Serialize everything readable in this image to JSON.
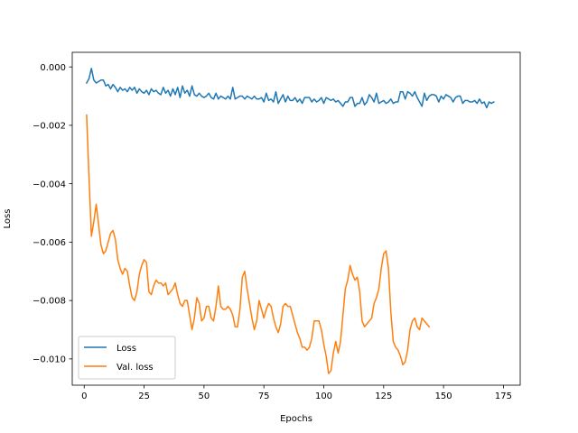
{
  "chart_data": {
    "type": "line",
    "title": "",
    "xlabel": "Epochs",
    "ylabel": "Loss",
    "xlim": [
      -5,
      182
    ],
    "ylim": [
      -0.0109,
      0.0005
    ],
    "xticks": [
      0,
      25,
      50,
      75,
      100,
      125,
      150,
      175
    ],
    "xtick_labels": [
      "0",
      "25",
      "50",
      "75",
      "100",
      "125",
      "150",
      "175"
    ],
    "yticks": [
      0.0,
      -0.002,
      -0.004,
      -0.006,
      -0.008,
      -0.01
    ],
    "ytick_labels": [
      "0.000",
      "−0.002",
      "−0.004",
      "−0.006",
      "−0.008",
      "−0.010"
    ],
    "grid": false,
    "legend_position": "lower-left",
    "series": [
      {
        "name": "Loss",
        "color": "#1f77b4",
        "x_start": 1,
        "x_step": 1,
        "values": [
          -0.00055,
          -0.0004,
          -5e-05,
          -0.00045,
          -0.00055,
          -0.0005,
          -0.00045,
          -0.00045,
          -0.00065,
          -0.0006,
          -0.00075,
          -0.0006,
          -0.0007,
          -0.00085,
          -0.0007,
          -0.0008,
          -0.00075,
          -0.00085,
          -0.0007,
          -0.0008,
          -0.0007,
          -0.0009,
          -0.00075,
          -0.00085,
          -0.0009,
          -0.0008,
          -0.00095,
          -0.00075,
          -0.00085,
          -0.0008,
          -0.0009,
          -0.00095,
          -0.0007,
          -0.0009,
          -0.0008,
          -0.001,
          -0.00075,
          -0.00095,
          -0.0007,
          -0.00105,
          -0.00065,
          -0.0009,
          -0.0008,
          -0.001,
          -0.00065,
          -0.00095,
          -0.001,
          -0.0009,
          -0.001,
          -0.00105,
          -0.001,
          -0.0009,
          -0.00105,
          -0.0011,
          -0.0009,
          -0.0011,
          -0.001,
          -0.00105,
          -0.0011,
          -0.001,
          -0.0011,
          -0.0007,
          -0.0011,
          -0.00105,
          -0.001,
          -0.001,
          -0.0011,
          -0.001,
          -0.00105,
          -0.0011,
          -0.001,
          -0.0011,
          -0.0011,
          -0.00105,
          -0.0012,
          -0.0009,
          -0.00115,
          -0.0011,
          -0.0012,
          -0.00085,
          -0.00125,
          -0.0011,
          -0.00095,
          -0.0012,
          -0.001,
          -0.00115,
          -0.00115,
          -0.00105,
          -0.0012,
          -0.0011,
          -0.00125,
          -0.00105,
          -0.00105,
          -0.00105,
          -0.0012,
          -0.0011,
          -0.0012,
          -0.00115,
          -0.00105,
          -0.00125,
          -0.00105,
          -0.0011,
          -0.00115,
          -0.0011,
          -0.0012,
          -0.00115,
          -0.00125,
          -0.00135,
          -0.0012,
          -0.0012,
          -0.00105,
          -0.00105,
          -0.00135,
          -0.00125,
          -0.00125,
          -0.00105,
          -0.0013,
          -0.0012,
          -0.00095,
          -0.00105,
          -0.0012,
          -0.0009,
          -0.00125,
          -0.0012,
          -0.00115,
          -0.00125,
          -0.0012,
          -0.0011,
          -0.00125,
          -0.0012,
          -0.0012,
          -0.00085,
          -0.00085,
          -0.0011,
          -0.00085,
          -0.0009,
          -0.001,
          -0.00085,
          -0.00105,
          -0.0012,
          -0.00135,
          -0.0009,
          -0.00115,
          -0.001,
          -0.00095,
          -0.00095,
          -0.001,
          -0.0012,
          -0.001,
          -0.0011,
          -0.00095,
          -0.001,
          -0.00105,
          -0.0012,
          -0.00105,
          -0.001,
          -0.001,
          -0.00125,
          -0.00115,
          -0.00115,
          -0.0012,
          -0.0012,
          -0.00115,
          -0.00125,
          -0.0011,
          -0.00125,
          -0.0012,
          -0.0014,
          -0.0012,
          -0.00125,
          -0.0012
        ]
      },
      {
        "name": "Val. loss",
        "color": "#ff7f0e",
        "x_start": 1,
        "x_step": 1,
        "values": [
          -0.00165,
          -0.0038,
          -0.0058,
          -0.0053,
          -0.0047,
          -0.0054,
          -0.0061,
          -0.0064,
          -0.0063,
          -0.006,
          -0.0057,
          -0.0056,
          -0.0059,
          -0.0066,
          -0.0069,
          -0.0071,
          -0.0069,
          -0.007,
          -0.0075,
          -0.0079,
          -0.008,
          -0.0077,
          -0.0071,
          -0.0068,
          -0.0066,
          -0.0067,
          -0.0077,
          -0.0078,
          -0.0075,
          -0.0073,
          -0.0074,
          -0.0074,
          -0.0075,
          -0.0074,
          -0.0078,
          -0.0077,
          -0.0076,
          -0.0074,
          -0.0078,
          -0.0081,
          -0.0082,
          -0.008,
          -0.008,
          -0.0085,
          -0.009,
          -0.0086,
          -0.0079,
          -0.0081,
          -0.0087,
          -0.0086,
          -0.0082,
          -0.0082,
          -0.0086,
          -0.0087,
          -0.0082,
          -0.0075,
          -0.0082,
          -0.0083,
          -0.0083,
          -0.0082,
          -0.0083,
          -0.0085,
          -0.0089,
          -0.0089,
          -0.0083,
          -0.0072,
          -0.007,
          -0.0076,
          -0.0081,
          -0.0086,
          -0.009,
          -0.0087,
          -0.008,
          -0.0083,
          -0.0086,
          -0.0083,
          -0.0081,
          -0.0082,
          -0.0086,
          -0.0089,
          -0.0091,
          -0.0088,
          -0.0082,
          -0.0081,
          -0.0082,
          -0.0082,
          -0.0085,
          -0.0088,
          -0.0091,
          -0.0093,
          -0.0096,
          -0.0096,
          -0.0097,
          -0.0096,
          -0.0093,
          -0.0087,
          -0.0087,
          -0.0087,
          -0.009,
          -0.0095,
          -0.0099,
          -0.0105,
          -0.0104,
          -0.0098,
          -0.0094,
          -0.0098,
          -0.0094,
          -0.0085,
          -0.0076,
          -0.0073,
          -0.0068,
          -0.0071,
          -0.0073,
          -0.0072,
          -0.0077,
          -0.0087,
          -0.0089,
          -0.0088,
          -0.0087,
          -0.0086,
          -0.0081,
          -0.0079,
          -0.0076,
          -0.0069,
          -0.0064,
          -0.0063,
          -0.0069,
          -0.0084,
          -0.0094,
          -0.0096,
          -0.0097,
          -0.0099,
          -0.0102,
          -0.0101,
          -0.0097,
          -0.009,
          -0.0087,
          -0.0086,
          -0.0089,
          -0.009,
          -0.0086,
          -0.0087,
          -0.0088,
          -0.0089
        ]
      }
    ]
  }
}
